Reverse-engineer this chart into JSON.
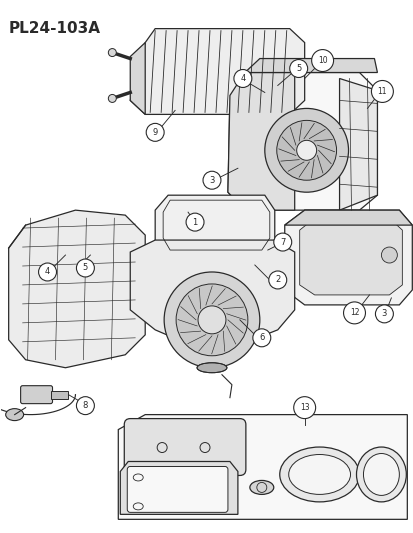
{
  "title": "PL24-103A",
  "bg_color": "#ffffff",
  "lc": "#2a2a2a",
  "fig_width": 4.14,
  "fig_height": 5.33,
  "dpi": 100,
  "gray_fill": "#d8d8d8",
  "light_gray": "#eeeeee",
  "panel_fill": "#f0f0f0"
}
